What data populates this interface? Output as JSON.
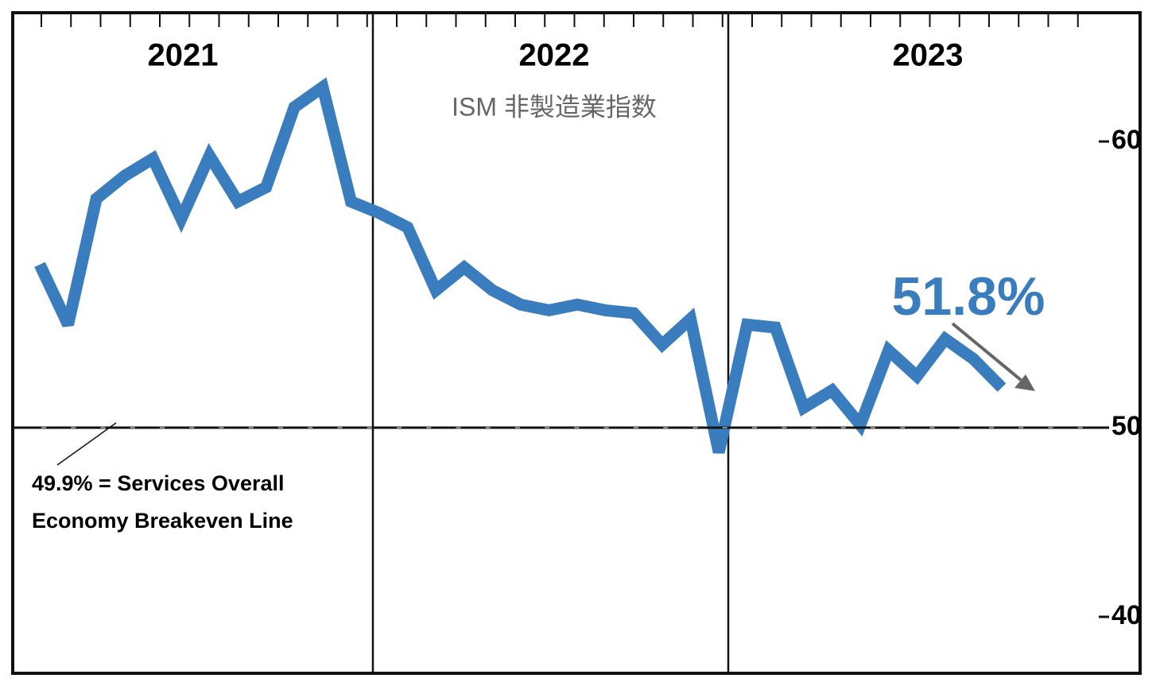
{
  "chart_data": {
    "type": "line",
    "title": "ISM 非製造業指数",
    "period_labels": [
      "2021",
      "2022",
      "2023"
    ],
    "categories": [
      null,
      null,
      null,
      null,
      null,
      null,
      null,
      null,
      null,
      null,
      null,
      null,
      null,
      null,
      null,
      null,
      null,
      null,
      null,
      null,
      null,
      null,
      null,
      null,
      null,
      null,
      null,
      null,
      null,
      null,
      null,
      null,
      null,
      null,
      null
    ],
    "series": [
      {
        "color": "#3a7dbf",
        "values": [
          55.7,
          53.6,
          58.0,
          58.8,
          59.4,
          57.3,
          59.5,
          57.9,
          58.4,
          61.2,
          61.9,
          57.9,
          57.5,
          57.0,
          54.8,
          55.6,
          54.8,
          54.3,
          54.1,
          54.3,
          54.1,
          54.0,
          52.9,
          53.8,
          48.7,
          53.6,
          53.5,
          50.7,
          51.3,
          50.1,
          52.7,
          51.8,
          53.1,
          52.4,
          51.4
        ]
      }
    ],
    "ylim": [
      37,
      64.5
    ],
    "yticks": [
      60,
      50,
      40
    ],
    "baseline": 50,
    "annotations": [
      "51.8%",
      "49.9% = Services Overall",
      "Economy Breakeven Line"
    ]
  }
}
